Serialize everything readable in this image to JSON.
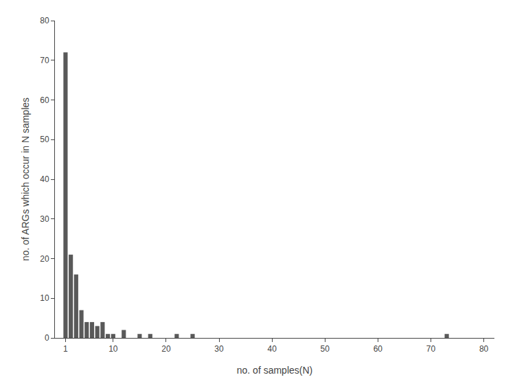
{
  "chart_data": {
    "type": "bar",
    "x": [
      1,
      2,
      3,
      4,
      5,
      6,
      7,
      8,
      9,
      10,
      12,
      15,
      17,
      22,
      25,
      73
    ],
    "values": [
      72,
      21,
      16,
      7,
      4,
      4,
      3,
      4,
      1,
      1,
      2,
      1,
      1,
      1,
      1,
      1
    ],
    "color": "#595959",
    "xlabel": "no. of samples(N)",
    "ylabel": "no. of ARGs which occur in N samples",
    "xlim": [
      -1,
      82
    ],
    "ylim": [
      0,
      80
    ],
    "xticks": [
      1,
      10,
      20,
      30,
      40,
      50,
      60,
      70,
      80
    ],
    "yticks": [
      0,
      10,
      20,
      30,
      40,
      50,
      60,
      70,
      80
    ],
    "grid": false
  }
}
